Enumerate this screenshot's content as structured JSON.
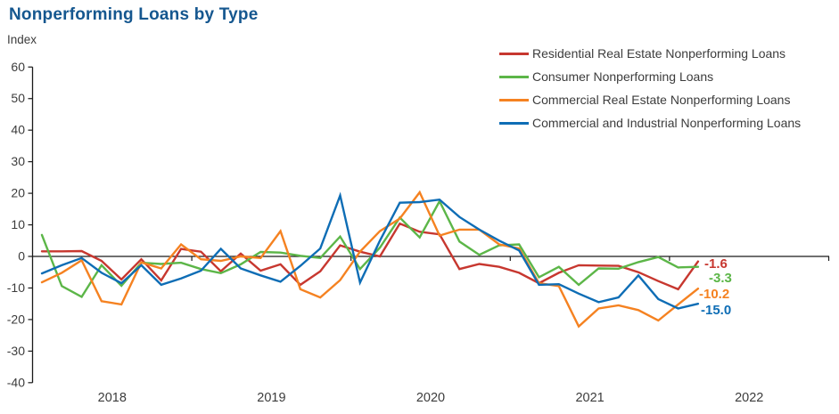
{
  "title": "Nonperforming Loans by Type",
  "y_axis_label": "Index",
  "chart_data": {
    "type": "line",
    "title": "Nonperforming Loans by Type",
    "ylabel": "Index",
    "ylim": [
      -40,
      60
    ],
    "y_ticks": [
      60,
      50,
      40,
      30,
      20,
      10,
      0,
      -10,
      -20,
      -30,
      -40
    ],
    "x_year_labels": [
      "2018",
      "2019",
      "2020",
      "2021",
      "2022"
    ],
    "x_note": "8 observations per year, starting January 2018, ending early 2022",
    "grid": false,
    "legend_position": "top-right",
    "series": [
      {
        "name": "Residential Real Estate Nonperforming Loans",
        "color": "#C7372F",
        "end_label": "-1.6",
        "values": [
          1.6,
          1.6,
          1.7,
          -1.4,
          -7.3,
          -0.9,
          -7.6,
          2.4,
          1.5,
          -4.7,
          0.9,
          -4.5,
          -2.5,
          -9.0,
          -4.7,
          3.5,
          1.5,
          0.0,
          10.4,
          7.8,
          7.0,
          -4.0,
          -2.4,
          -3.3,
          -5.2,
          -8.5,
          -5.2,
          -2.8,
          -2.9,
          -3.0,
          -5.0,
          -7.8,
          -10.4,
          -1.6
        ]
      },
      {
        "name": "Consumer Nonperforming Loans",
        "color": "#5CB648",
        "end_label": "-3.3",
        "values": [
          6.8,
          -9.4,
          -12.8,
          -2.8,
          -9.3,
          -2.0,
          -2.4,
          -2.0,
          -4.0,
          -5.3,
          -2.5,
          1.4,
          1.2,
          0.2,
          -0.5,
          6.3,
          -4.0,
          2.8,
          12.3,
          6.0,
          17.5,
          4.7,
          0.5,
          3.5,
          3.8,
          -6.6,
          -3.3,
          -9.0,
          -3.8,
          -3.9,
          -1.8,
          -0.2,
          -3.5,
          -3.3
        ]
      },
      {
        "name": "Commercial Real Estate Nonperforming Loans",
        "color": "#F58221",
        "end_label": "-10.2",
        "values": [
          -8.2,
          -5.2,
          -1.2,
          -14.2,
          -15.2,
          -1.9,
          -3.8,
          3.8,
          -0.9,
          -1.4,
          0.0,
          -0.5,
          8.0,
          -10.4,
          -13.0,
          -7.5,
          1.5,
          8.0,
          12.0,
          20.3,
          6.6,
          8.5,
          8.5,
          3.8,
          2.5,
          -8.5,
          -9.4,
          -22.2,
          -16.5,
          -15.5,
          -17.0,
          -20.3,
          -15.2,
          -10.2
        ]
      },
      {
        "name": "Commercial and Industrial Nonperforming Loans",
        "color": "#0E6DB5",
        "end_label": "-15.0",
        "values": [
          -5.4,
          -2.8,
          -0.5,
          -5.2,
          -8.5,
          -2.8,
          -9.0,
          -7.0,
          -4.5,
          2.4,
          -3.8,
          -6.0,
          -8.0,
          -3.0,
          2.5,
          19.3,
          -8.3,
          5.0,
          17.0,
          17.2,
          18.0,
          12.5,
          8.5,
          5.0,
          1.9,
          -9.0,
          -8.8,
          -11.8,
          -14.5,
          -13.0,
          -6.0,
          -13.5,
          -16.5,
          -15.0
        ]
      }
    ]
  }
}
